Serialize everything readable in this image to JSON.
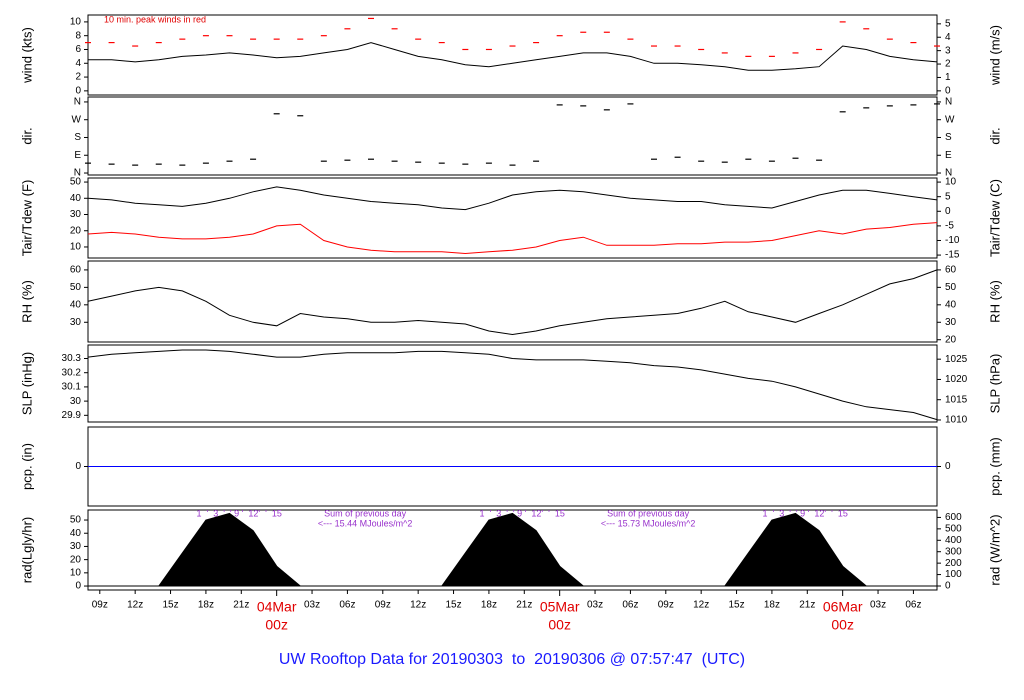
{
  "page_title": "UW Rooftop Data for 20190303  to  20190306 @ 07:57:47  (UTC)",
  "time_axis": {
    "xlim": [
      8,
      80
    ],
    "xticks": [
      {
        "value": 9,
        "label": "09z"
      },
      {
        "value": 12,
        "label": "12z"
      },
      {
        "value": 15,
        "label": "15z"
      },
      {
        "value": 18,
        "label": "18z"
      },
      {
        "value": 21,
        "label": "21z"
      },
      {
        "value": 27,
        "label": "03z"
      },
      {
        "value": 30,
        "label": "06z"
      },
      {
        "value": 33,
        "label": "09z"
      },
      {
        "value": 36,
        "label": "12z"
      },
      {
        "value": 39,
        "label": "15z"
      },
      {
        "value": 42,
        "label": "18z"
      },
      {
        "value": 45,
        "label": "21z"
      },
      {
        "value": 51,
        "label": "03z"
      },
      {
        "value": 54,
        "label": "06z"
      },
      {
        "value": 57,
        "label": "09z"
      },
      {
        "value": 60,
        "label": "12z"
      },
      {
        "value": 63,
        "label": "15z"
      },
      {
        "value": 66,
        "label": "18z"
      },
      {
        "value": 69,
        "label": "21z"
      },
      {
        "value": 75,
        "label": "03z"
      },
      {
        "value": 78,
        "label": "06z"
      }
    ],
    "day_ticks": [
      {
        "value": 24,
        "label": "04Mar",
        "sublabel": "00z"
      },
      {
        "value": 48,
        "label": "05Mar",
        "sublabel": "00z"
      },
      {
        "value": 72,
        "label": "06Mar",
        "sublabel": "00z"
      }
    ]
  },
  "chart_data": [
    {
      "type": "line",
      "ylabel": "wind (kts)",
      "y2label": "wind (m/s)",
      "annotation": "10 min. peak winds in red",
      "ylim": [
        -0.6,
        11
      ],
      "yticks": [
        0,
        2,
        4,
        6,
        8,
        10
      ],
      "y2lim": [
        -0.31,
        5.66
      ],
      "y2ticks": [
        0,
        1,
        2,
        3,
        4,
        5
      ],
      "x": [
        8,
        10,
        12,
        14,
        16,
        18,
        20,
        22,
        24,
        26,
        28,
        30,
        32,
        34,
        36,
        38,
        40,
        42,
        44,
        46,
        48,
        50,
        52,
        54,
        56,
        58,
        60,
        62,
        64,
        66,
        68,
        70,
        72,
        74,
        76,
        78,
        80
      ],
      "series": [
        {
          "color": "#000000",
          "values": [
            4.5,
            4.5,
            4.2,
            4.5,
            5,
            5.2,
            5.5,
            5.2,
            4.8,
            5,
            5.5,
            6,
            7,
            6,
            5,
            4.5,
            3.8,
            3.5,
            4,
            4.5,
            5,
            5.5,
            5.5,
            5,
            4,
            4,
            3.8,
            3.5,
            3,
            3,
            3.2,
            3.5,
            6.5,
            6,
            5,
            4.5,
            4.2
          ]
        },
        {
          "color": "#ff0000",
          "marker": "dash",
          "values": [
            7,
            7,
            6.5,
            7,
            7.5,
            8,
            8,
            7.5,
            7.5,
            7.5,
            8,
            9,
            10.5,
            9,
            7.5,
            7,
            6,
            6,
            6.5,
            7,
            8,
            8.5,
            8.5,
            7.5,
            6.5,
            6.5,
            6,
            5.5,
            5,
            5,
            5.5,
            6,
            10,
            9,
            7.5,
            7,
            6.5
          ]
        }
      ]
    },
    {
      "type": "scatter",
      "ylabel": "dir.",
      "y2label": "dir.",
      "ylim": [
        -10,
        385
      ],
      "yticks": [
        {
          "value": 0,
          "label": "N"
        },
        {
          "value": 90,
          "label": "E"
        },
        {
          "value": 180,
          "label": "S"
        },
        {
          "value": 270,
          "label": "W"
        },
        {
          "value": 360,
          "label": "N"
        }
      ],
      "y2lim": [
        -10,
        385
      ],
      "y2ticks": [
        {
          "value": 0,
          "label": "N"
        },
        {
          "value": 90,
          "label": "E"
        },
        {
          "value": 180,
          "label": "S"
        },
        {
          "value": 270,
          "label": "W"
        },
        {
          "value": 360,
          "label": "N"
        }
      ],
      "x": [
        8,
        10,
        12,
        14,
        16,
        18,
        20,
        22,
        24,
        26,
        28,
        30,
        32,
        34,
        36,
        38,
        40,
        42,
        44,
        46,
        48,
        50,
        52,
        54,
        56,
        58,
        60,
        62,
        64,
        66,
        68,
        70,
        72,
        74,
        76,
        78,
        80
      ],
      "series": [
        {
          "color": "#000000",
          "values": [
            50,
            45,
            40,
            45,
            40,
            50,
            60,
            70,
            300,
            290,
            60,
            65,
            70,
            60,
            55,
            50,
            45,
            50,
            40,
            60,
            345,
            340,
            320,
            350,
            70,
            80,
            60,
            55,
            70,
            60,
            75,
            65,
            310,
            330,
            340,
            345,
            350
          ]
        }
      ]
    },
    {
      "type": "line",
      "ylabel": "Tair/Tdew (F)",
      "y2label": "Tair/Tdew (C)",
      "ylim": [
        3.2,
        52.5
      ],
      "yticks": [
        10,
        20,
        30,
        40,
        50
      ],
      "y2lim": [
        -16,
        11.4
      ],
      "y2ticks": [
        -15,
        -10,
        -5,
        0,
        5,
        10
      ],
      "x": [
        8,
        10,
        12,
        14,
        16,
        18,
        20,
        22,
        24,
        26,
        28,
        30,
        32,
        34,
        36,
        38,
        40,
        42,
        44,
        46,
        48,
        50,
        52,
        54,
        56,
        58,
        60,
        62,
        64,
        66,
        68,
        70,
        72,
        74,
        76,
        78,
        80
      ],
      "series": [
        {
          "color": "#000000",
          "values": [
            40,
            39,
            37,
            36,
            35,
            37,
            40,
            44,
            47,
            45,
            42,
            40,
            38,
            37,
            36,
            34,
            33,
            37,
            42,
            44,
            45,
            44,
            42,
            40,
            39,
            38,
            38,
            36,
            35,
            34,
            38,
            42,
            45,
            45,
            43,
            41,
            39
          ]
        },
        {
          "color": "#ff0000",
          "values": [
            18,
            19,
            18,
            16,
            15,
            15,
            16,
            18,
            23,
            24,
            14,
            10,
            8,
            7,
            7,
            7,
            6,
            7,
            8,
            10,
            14,
            16,
            11,
            11,
            11,
            12,
            12,
            13,
            13,
            14,
            17,
            20,
            18,
            21,
            22,
            24,
            25
          ]
        }
      ]
    },
    {
      "type": "line",
      "ylabel": "RH (%)",
      "y2label": "RH (%)",
      "ylim": [
        18.7,
        65.1
      ],
      "yticks": [
        30,
        40,
        50,
        60
      ],
      "y2lim": [
        18.7,
        65.1
      ],
      "y2ticks": [
        20,
        30,
        40,
        50,
        60
      ],
      "x": [
        8,
        10,
        12,
        14,
        16,
        18,
        20,
        22,
        24,
        26,
        28,
        30,
        32,
        34,
        36,
        38,
        40,
        42,
        44,
        46,
        48,
        50,
        52,
        54,
        56,
        58,
        60,
        62,
        64,
        66,
        68,
        70,
        72,
        74,
        76,
        78,
        80
      ],
      "series": [
        {
          "color": "#000000",
          "values": [
            42,
            45,
            48,
            50,
            48,
            42,
            34,
            30,
            28,
            35,
            33,
            32,
            30,
            30,
            31,
            30,
            29,
            25,
            23,
            25,
            28,
            30,
            32,
            33,
            34,
            35,
            38,
            42,
            36,
            33,
            30,
            35,
            40,
            46,
            52,
            55,
            60
          ]
        }
      ]
    },
    {
      "type": "line",
      "ylabel": "SLP (inHg)",
      "y2label": "SLP (hPa)",
      "ylim": [
        29.853,
        30.395
      ],
      "yticks": [
        29.9,
        30,
        30.1,
        30.2,
        30.3
      ],
      "y2lim": [
        1009.5,
        1028.5
      ],
      "y2ticks": [
        1010,
        1015,
        1020,
        1025
      ],
      "x": [
        8,
        10,
        12,
        14,
        16,
        18,
        20,
        22,
        24,
        26,
        28,
        30,
        32,
        34,
        36,
        38,
        40,
        42,
        44,
        46,
        48,
        50,
        52,
        54,
        56,
        58,
        60,
        62,
        64,
        66,
        68,
        70,
        72,
        74,
        76,
        78,
        80
      ],
      "series": [
        {
          "color": "#000000",
          "values": [
            30.31,
            30.33,
            30.34,
            30.35,
            30.36,
            30.36,
            30.35,
            30.33,
            30.31,
            30.31,
            30.33,
            30.34,
            30.34,
            30.34,
            30.35,
            30.35,
            30.34,
            30.33,
            30.3,
            30.29,
            30.29,
            30.29,
            30.28,
            30.27,
            30.25,
            30.24,
            30.22,
            30.19,
            30.16,
            30.14,
            30.1,
            30.05,
            30,
            29.96,
            29.94,
            29.92,
            29.87
          ]
        }
      ]
    },
    {
      "type": "line",
      "ylabel": "pcp. (in)",
      "y2label": "pcp. (mm)",
      "ylim": [
        -1,
        1
      ],
      "yticks": [
        0
      ],
      "y2lim": [
        -1,
        1
      ],
      "y2ticks": [
        0
      ],
      "x": [
        8,
        10,
        12,
        14,
        16,
        18,
        20,
        22,
        24,
        26,
        28,
        30,
        32,
        34,
        36,
        38,
        40,
        42,
        44,
        46,
        48,
        50,
        52,
        54,
        56,
        58,
        60,
        62,
        64,
        66,
        68,
        70,
        72,
        74,
        76,
        78,
        80
      ],
      "series": [
        {
          "color": "#0000ff",
          "values": [
            0,
            0,
            0,
            0,
            0,
            0,
            0,
            0,
            0,
            0,
            0,
            0,
            0,
            0,
            0,
            0,
            0,
            0,
            0,
            0,
            0,
            0,
            0,
            0,
            0,
            0,
            0,
            0,
            0,
            0,
            0,
            0,
            0,
            0,
            0,
            0,
            0
          ]
        }
      ]
    },
    {
      "type": "area",
      "ylabel": "rad(Lgly/hr)",
      "y2label": "rad (W/m^2)",
      "hour_marks": "1  '  3  '  ' 9 '  12'  '  15",
      "notes": [
        [
          "Sum of previous day",
          "<--- 15.44 MJoules/m^2"
        ],
        [
          "Sum of previous day",
          "<--- 15.73 MJoules/m^2"
        ]
      ],
      "ylim": [
        -3,
        57.6
      ],
      "yticks": [
        0,
        10,
        20,
        30,
        40,
        50
      ],
      "y2lim": [
        -35,
        665
      ],
      "y2ticks": [
        0,
        100,
        200,
        300,
        400,
        500,
        600
      ],
      "x": [
        8,
        10,
        12,
        14,
        16,
        18,
        20,
        22,
        24,
        26,
        28,
        30,
        32,
        34,
        36,
        38,
        40,
        42,
        44,
        46,
        48,
        50,
        52,
        54,
        56,
        58,
        60,
        62,
        64,
        66,
        68,
        70,
        72,
        74,
        76,
        78,
        80
      ],
      "series": [
        {
          "color": "#000000",
          "values": [
            0,
            0,
            0,
            0,
            25,
            50,
            55,
            42,
            15,
            0,
            0,
            0,
            0,
            0,
            0,
            0,
            25,
            50,
            55,
            42,
            15,
            0,
            0,
            0,
            0,
            0,
            0,
            0,
            25,
            50,
            55,
            42,
            15,
            0,
            0,
            0,
            0
          ]
        }
      ]
    }
  ]
}
